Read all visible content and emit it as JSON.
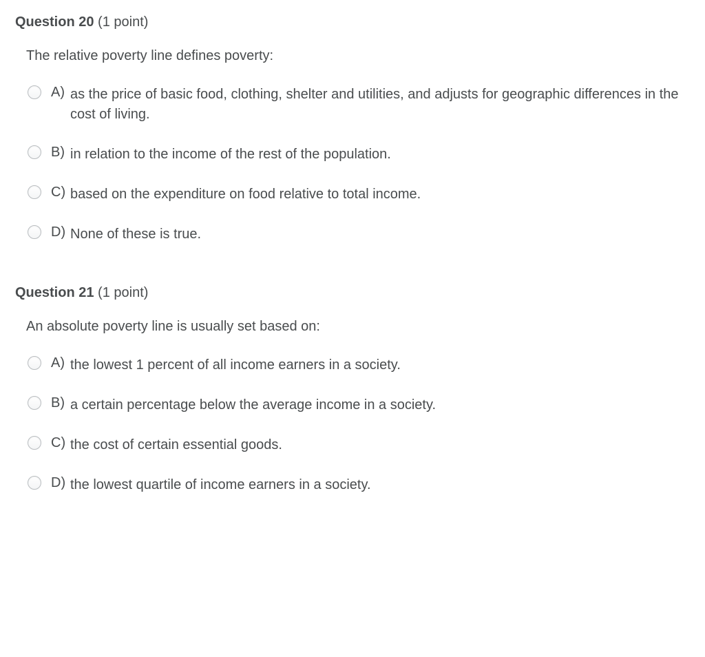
{
  "questions": [
    {
      "label": "Question",
      "number": "20",
      "points": "(1 point)",
      "text": "The relative poverty line defines poverty:",
      "options": [
        {
          "letter": "A)",
          "text": "as the price of basic food, clothing, shelter and utilities, and adjusts for geographic differences in the cost of living."
        },
        {
          "letter": "B)",
          "text": "in relation to the income of the rest of the population."
        },
        {
          "letter": "C)",
          "text": "based on the expenditure on food relative to total income."
        },
        {
          "letter": "D)",
          "text": "None of these is true."
        }
      ]
    },
    {
      "label": "Question",
      "number": "21",
      "points": "(1 point)",
      "text": "An absolute poverty line is usually set based on:",
      "options": [
        {
          "letter": "A)",
          "text": "the lowest 1 percent of all income earners in a society."
        },
        {
          "letter": "B)",
          "text": "a certain percentage below the average income in a society."
        },
        {
          "letter": "C)",
          "text": "the cost of certain essential goods."
        },
        {
          "letter": "D)",
          "text": "the lowest quartile of income earners in a society."
        }
      ]
    }
  ]
}
